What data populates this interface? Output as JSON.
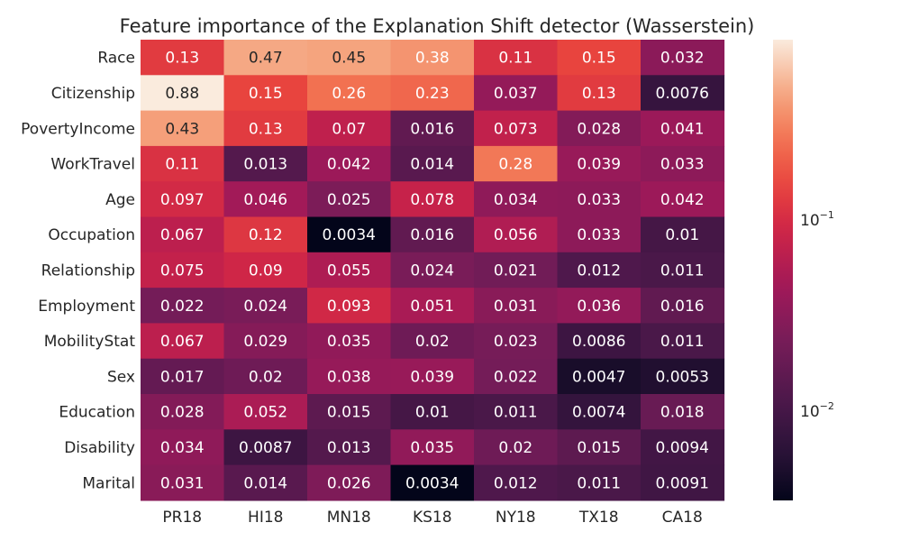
{
  "chart_data": {
    "type": "heatmap",
    "title": "Feature importance of the Explanation Shift detector (Wasserstein)",
    "rows": [
      "Race",
      "Citizenship",
      "PovertyIncome",
      "WorkTravel",
      "Age",
      "Occupation",
      "Relationship",
      "Employment",
      "MobilityStat",
      "Sex",
      "Education",
      "Disability",
      "Marital"
    ],
    "columns": [
      "PR18",
      "HI18",
      "MN18",
      "KS18",
      "NY18",
      "TX18",
      "CA18"
    ],
    "values": [
      [
        0.13,
        0.47,
        0.45,
        0.38,
        0.11,
        0.15,
        0.032
      ],
      [
        0.88,
        0.15,
        0.26,
        0.23,
        0.037,
        0.13,
        0.0076
      ],
      [
        0.43,
        0.13,
        0.07,
        0.016,
        0.073,
        0.028,
        0.041
      ],
      [
        0.11,
        0.013,
        0.042,
        0.014,
        0.28,
        0.039,
        0.033
      ],
      [
        0.097,
        0.046,
        0.025,
        0.078,
        0.034,
        0.033,
        0.042
      ],
      [
        0.067,
        0.12,
        0.0034,
        0.016,
        0.056,
        0.033,
        0.01
      ],
      [
        0.075,
        0.09,
        0.055,
        0.024,
        0.021,
        0.012,
        0.011
      ],
      [
        0.022,
        0.024,
        0.093,
        0.051,
        0.031,
        0.036,
        0.016
      ],
      [
        0.067,
        0.029,
        0.035,
        0.02,
        0.023,
        0.0086,
        0.011
      ],
      [
        0.017,
        0.02,
        0.038,
        0.039,
        0.022,
        0.0047,
        0.0053
      ],
      [
        0.028,
        0.052,
        0.015,
        0.01,
        0.011,
        0.0074,
        0.018
      ],
      [
        0.034,
        0.0087,
        0.013,
        0.035,
        0.02,
        0.015,
        0.0094
      ],
      [
        0.031,
        0.014,
        0.026,
        0.0034,
        0.012,
        0.011,
        0.0091
      ]
    ],
    "labels": [
      [
        "0.13",
        "0.47",
        "0.45",
        "0.38",
        "0.11",
        "0.15",
        "0.032"
      ],
      [
        "0.88",
        "0.15",
        "0.26",
        "0.23",
        "0.037",
        "0.13",
        "0.0076"
      ],
      [
        "0.43",
        "0.13",
        "0.07",
        "0.016",
        "0.073",
        "0.028",
        "0.041"
      ],
      [
        "0.11",
        "0.013",
        "0.042",
        "0.014",
        "0.28",
        "0.039",
        "0.033"
      ],
      [
        "0.097",
        "0.046",
        "0.025",
        "0.078",
        "0.034",
        "0.033",
        "0.042"
      ],
      [
        "0.067",
        "0.12",
        "0.0034",
        "0.016",
        "0.056",
        "0.033",
        "0.01"
      ],
      [
        "0.075",
        "0.09",
        "0.055",
        "0.024",
        "0.021",
        "0.012",
        "0.011"
      ],
      [
        "0.022",
        "0.024",
        "0.093",
        "0.051",
        "0.031",
        "0.036",
        "0.016"
      ],
      [
        "0.067",
        "0.029",
        "0.035",
        "0.02",
        "0.023",
        "0.0086",
        "0.011"
      ],
      [
        "0.017",
        "0.02",
        "0.038",
        "0.039",
        "0.022",
        "0.0047",
        "0.0053"
      ],
      [
        "0.028",
        "0.052",
        "0.015",
        "0.01",
        "0.011",
        "0.0074",
        "0.018"
      ],
      [
        "0.034",
        "0.0087",
        "0.013",
        "0.035",
        "0.02",
        "0.015",
        "0.0094"
      ],
      [
        "0.031",
        "0.014",
        "0.026",
        "0.0034",
        "0.012",
        "0.011",
        "0.0091"
      ]
    ],
    "colormap": "rocket",
    "color_scale": "log",
    "color_range": [
      0.0034,
      0.88
    ],
    "colorbar": {
      "ticks": [
        {
          "value": 0.1,
          "base": "10",
          "exponent": "−1"
        },
        {
          "value": 0.01,
          "base": "10",
          "exponent": "−2"
        }
      ]
    },
    "xlabel": "",
    "ylabel": ""
  }
}
